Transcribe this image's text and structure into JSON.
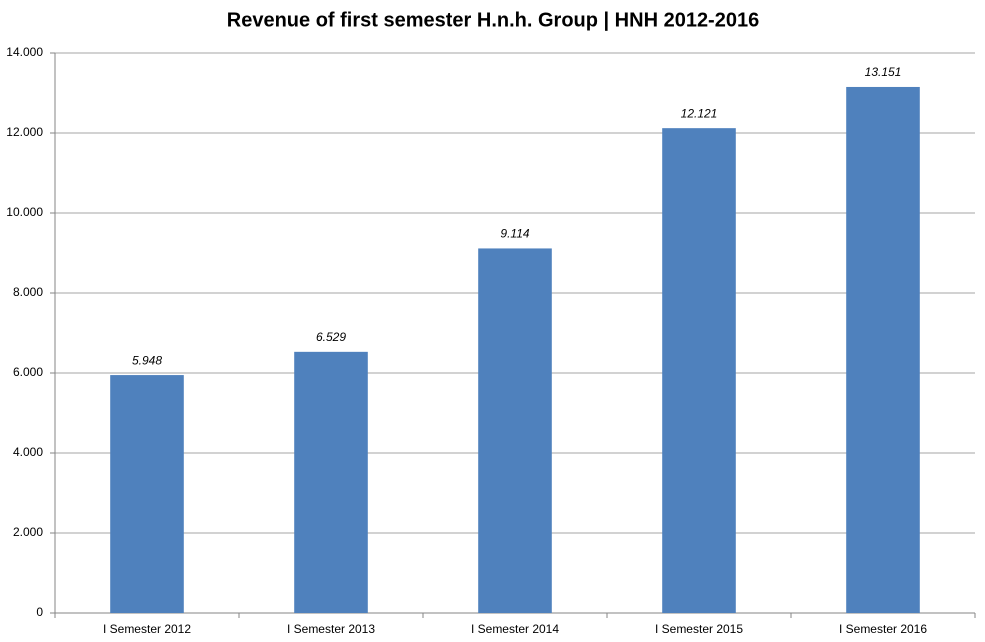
{
  "chart_data": {
    "type": "bar",
    "title": "Revenue of first semester H.n.h. Group | HNH 2012-2016",
    "categories": [
      "I Semester 2012",
      "I Semester 2013",
      "I Semester 2014",
      "I Semester 2015",
      "I Semester 2016"
    ],
    "values": [
      5948,
      6529,
      9114,
      12121,
      13151
    ],
    "value_labels": [
      "5.948",
      "6.529",
      "9.114",
      "12.121",
      "13.151"
    ],
    "color": "#4f81bd",
    "ylim": [
      0,
      14000
    ],
    "yticks": [
      0,
      {
        "value": 2000,
        "label": "2.000"
      },
      {
        "value": 4000,
        "label": "4.000"
      },
      {
        "value": 6000,
        "label": "6.000"
      },
      {
        "value": 8000,
        "label": "8.000"
      },
      {
        "value": 10000,
        "label": "10.000"
      },
      {
        "value": 12000,
        "label": "12.000"
      },
      {
        "value": 14000,
        "label": "14.000"
      }
    ],
    "grid": true
  }
}
